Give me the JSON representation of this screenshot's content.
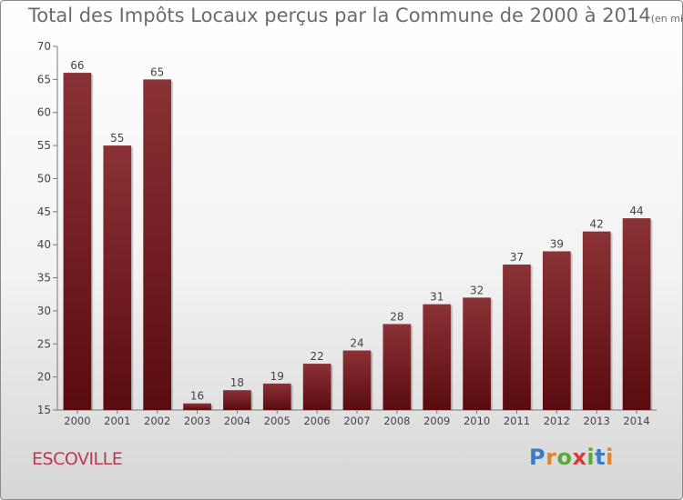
{
  "header": {
    "title": "Total des Impôts Locaux perçus par la Commune de 2000 à 2014",
    "unit": "(en milliers d'€)"
  },
  "footer": {
    "commune": "ESCOVILLE",
    "logo_letters": [
      "P",
      "r",
      "o",
      "x",
      "i",
      "t",
      "i"
    ],
    "logo_colors": [
      "#3a7cc7",
      "#e3842b",
      "#5aa83c",
      "#d63a3a",
      "#5aa83c",
      "#3a7cc7",
      "#e3842b"
    ]
  },
  "colors": {
    "bar_top": "#8a3236",
    "bar_bottom": "#5a0b0f",
    "axis": "#777777",
    "text": "#444444"
  },
  "chart_data": {
    "type": "bar",
    "title": "Total des Impôts Locaux perçus par la Commune de 2000 à 2014",
    "xlabel": "",
    "ylabel": "",
    "categories": [
      "2000",
      "2001",
      "2002",
      "2003",
      "2004",
      "2005",
      "2006",
      "2007",
      "2008",
      "2009",
      "2010",
      "2011",
      "2012",
      "2013",
      "2014"
    ],
    "values": [
      66,
      55,
      65,
      16,
      18,
      19,
      22,
      24,
      28,
      31,
      32,
      37,
      39,
      42,
      44
    ],
    "ylim": [
      15,
      70
    ],
    "yticks": [
      15,
      20,
      25,
      30,
      35,
      40,
      45,
      50,
      55,
      60,
      65,
      70
    ],
    "grid": false,
    "legend": "none"
  }
}
